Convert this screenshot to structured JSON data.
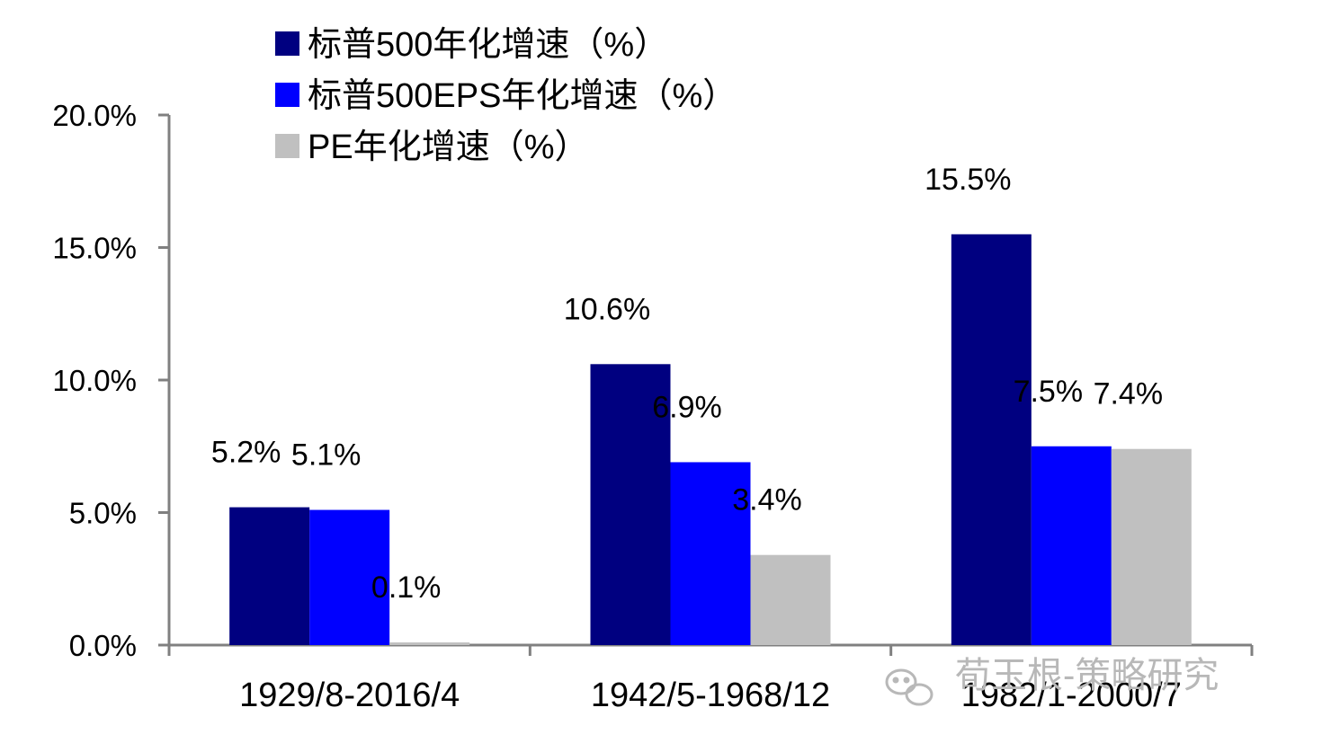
{
  "chart_data": {
    "type": "bar",
    "categories": [
      "1929/8-2016/4",
      "1942/5-1968/12",
      "1982/1-2000/7"
    ],
    "series": [
      {
        "name": "标普500年化增速（%）",
        "color": "#000080",
        "values": [
          5.2,
          10.6,
          15.5
        ],
        "labels": [
          "5.2%",
          "10.6%",
          "15.5%"
        ]
      },
      {
        "name": "标普500EPS年化增速（%）",
        "color": "#0000ff",
        "values": [
          5.1,
          6.9,
          7.5
        ],
        "labels": [
          "5.1%",
          "6.9%",
          "7.5%"
        ]
      },
      {
        "name": "PE年化增速（%）",
        "color": "#c0c0c0",
        "values": [
          0.1,
          3.4,
          7.4
        ],
        "labels": [
          "0.1%",
          "3.4%",
          "7.4%"
        ]
      }
    ],
    "y_ticks": [
      0,
      5,
      10,
      15,
      20
    ],
    "y_tick_labels": [
      "0.0%",
      "5.0%",
      "10.0%",
      "15.0%",
      "20.0%"
    ],
    "ylim": [
      0,
      20
    ],
    "grid": false,
    "legend_position": "top-left"
  },
  "watermark": {
    "text": "荀玉根-策略研究",
    "icon": "wechat-icon"
  }
}
